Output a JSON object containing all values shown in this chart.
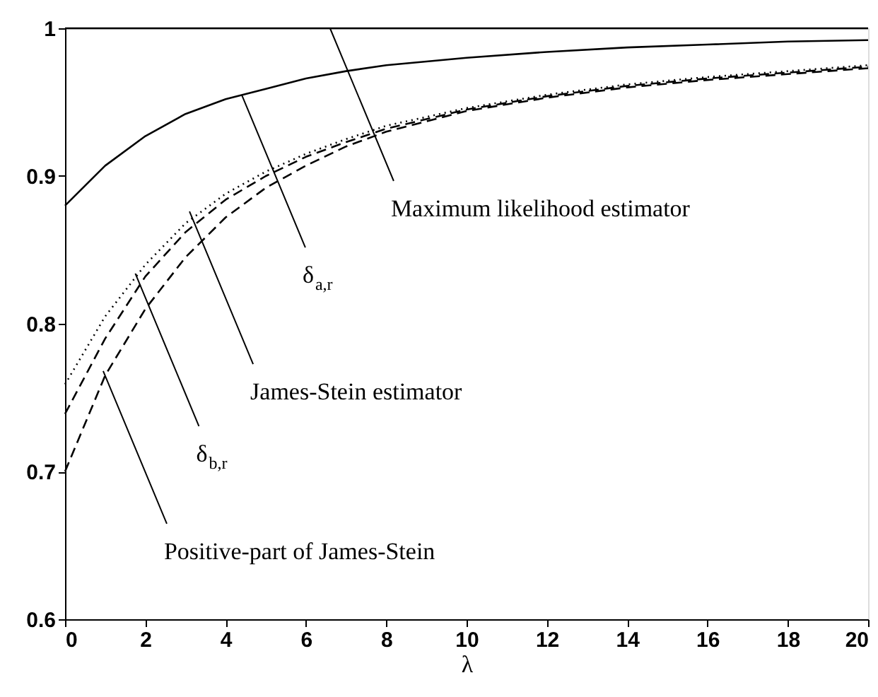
{
  "chart_data": {
    "type": "line",
    "xlabel": "λ",
    "xlim": [
      0,
      20
    ],
    "ylim": [
      0.6,
      1
    ],
    "xticks": [
      0,
      2,
      4,
      6,
      8,
      10,
      12,
      14,
      16,
      18,
      20
    ],
    "yticks": [
      0.6,
      0.7,
      0.8,
      0.9,
      1
    ],
    "grid": false,
    "legend": false,
    "marker": "none",
    "x": [
      0,
      1,
      2,
      3,
      4,
      5,
      6,
      7,
      8,
      10,
      12,
      14,
      16,
      18,
      20
    ],
    "series": [
      {
        "color": "#000000",
        "line_style": "solid",
        "values": [
          1,
          1,
          1,
          1,
          1,
          1,
          1,
          1,
          1,
          1,
          1,
          1,
          1,
          1,
          1
        ]
      },
      {
        "color": "#000000",
        "line_style": "solid",
        "values": [
          0.88,
          0.907,
          0.927,
          0.942,
          0.952,
          0.959,
          0.966,
          0.971,
          0.975,
          0.98,
          0.984,
          0.987,
          0.989,
          0.991,
          0.992
        ]
      },
      {
        "color": "#000000",
        "line_style": "dotted",
        "values": [
          0.759,
          0.805,
          0.84,
          0.868,
          0.888,
          0.903,
          0.915,
          0.925,
          0.934,
          0.946,
          0.955,
          0.962,
          0.967,
          0.971,
          0.975
        ]
      },
      {
        "color": "#000000",
        "line_style": "dashed",
        "values": [
          0.739,
          0.79,
          0.832,
          0.862,
          0.884,
          0.9,
          0.913,
          0.923,
          0.932,
          0.945,
          0.954,
          0.961,
          0.966,
          0.97,
          0.974
        ]
      },
      {
        "color": "#000000",
        "line_style": "dashed",
        "values": [
          0.7,
          0.765,
          0.81,
          0.845,
          0.872,
          0.892,
          0.907,
          0.92,
          0.93,
          0.944,
          0.953,
          0.96,
          0.965,
          0.969,
          0.973
        ]
      }
    ],
    "annotations": [
      {
        "text": "Maximum likelihood estimator",
        "x": 6.6,
        "y": 1
      },
      {
        "text": "δ$_{a,r}$",
        "x": 4.4,
        "y": 0.955
      },
      {
        "text": "James-Stein estimator",
        "x": 3.1,
        "y": 0.876
      },
      {
        "text": "δ$_{b,r}$",
        "x": 1.75,
        "y": 0.834
      },
      {
        "text": "Positive-part of James-Stein",
        "x": 0.95,
        "y": 0.768
      }
    ]
  }
}
